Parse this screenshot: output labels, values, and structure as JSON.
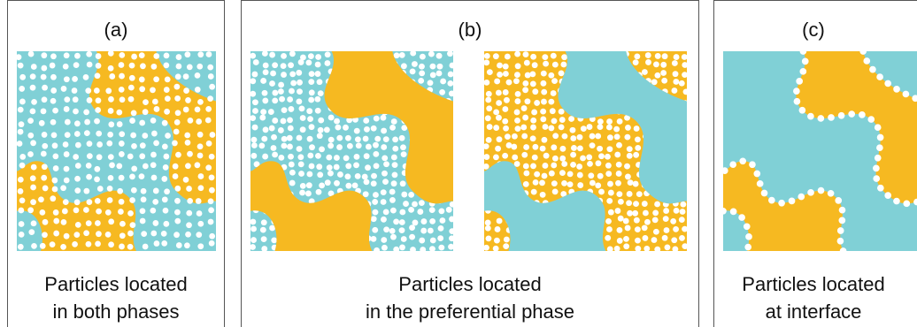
{
  "panels": [
    {
      "label": "(a)",
      "caption": [
        "Particles located",
        "in both phases"
      ]
    },
    {
      "label": "(b)",
      "caption": [
        "Particles located",
        "in the preferential phase"
      ]
    },
    {
      "label": "(c)",
      "caption": [
        "Particles located",
        "at interface"
      ]
    }
  ]
}
